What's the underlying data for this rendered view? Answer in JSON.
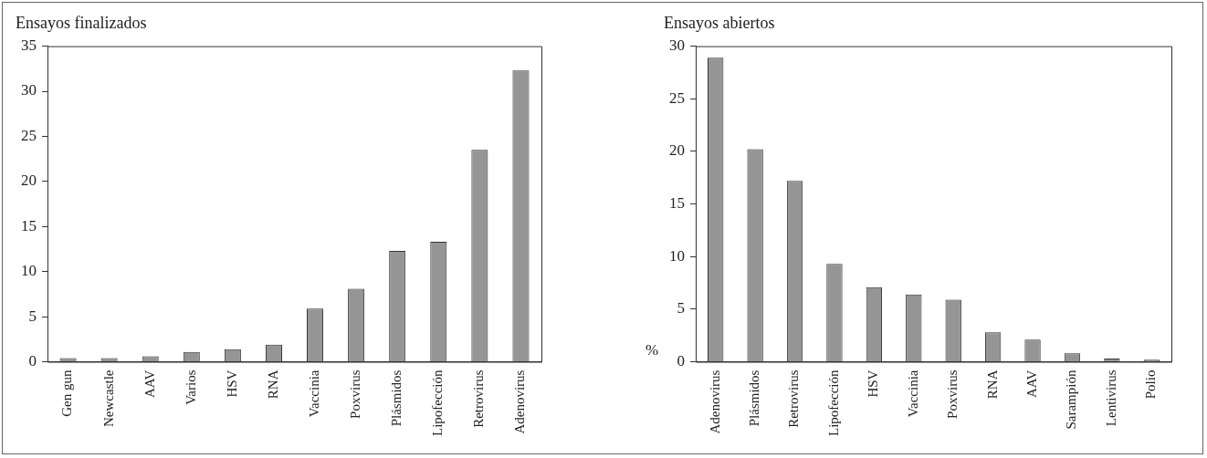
{
  "chart_data": [
    {
      "type": "bar",
      "title": "Ensayos finalizados",
      "categories": [
        "Gen gun",
        "Newcastle",
        "AAV",
        "Varios",
        "HSV",
        "RNA",
        "Vaccinia",
        "Poxvirus",
        "Plásmidos",
        "Lipofección",
        "Retrovirus",
        "Adenovirus"
      ],
      "values": [
        0.4,
        0.4,
        0.6,
        1.1,
        1.4,
        1.9,
        5.9,
        8.1,
        12.3,
        13.3,
        23.5,
        32.3
      ],
      "color": "#959595",
      "ylim": [
        0,
        35
      ],
      "yticks": [
        0,
        5,
        10,
        15,
        20,
        25,
        30,
        35
      ],
      "grid": false,
      "legend": false
    },
    {
      "type": "bar",
      "title": "Ensayos abiertos",
      "ylabel": "%",
      "categories": [
        "Adenovirus",
        "Plásmidos",
        "Retrovirus",
        "Lipofección",
        "HSV",
        "Vaccinia",
        "Poxvirus",
        "RNA",
        "AAV",
        "Sarampión",
        "Lentivirus",
        "Polio"
      ],
      "values": [
        28.9,
        20.2,
        17.2,
        9.3,
        7.1,
        6.4,
        5.9,
        2.8,
        2.1,
        0.8,
        0.3,
        0.2
      ],
      "color": "#959595",
      "ylim": [
        0,
        30
      ],
      "yticks": [
        0,
        5,
        10,
        15,
        20,
        25,
        30
      ],
      "grid": false,
      "legend": false
    }
  ]
}
